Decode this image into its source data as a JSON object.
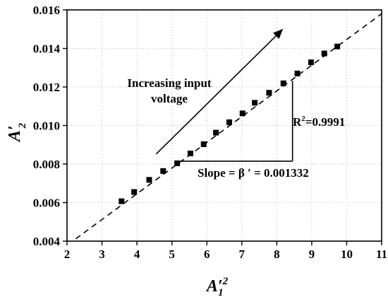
{
  "chart_data": {
    "type": "scatter",
    "title": "",
    "xlabel": {
      "main": "A",
      "prime": "′",
      "sub": "1",
      "sup": "2"
    },
    "ylabel": {
      "main": "A",
      "prime": "′",
      "sub": "2"
    },
    "xlim": [
      2,
      11
    ],
    "ylim": [
      0.004,
      0.016
    ],
    "x_ticks": [
      2,
      3,
      4,
      5,
      6,
      7,
      8,
      9,
      10,
      11
    ],
    "x_tick_labels": [
      "2",
      "3",
      "4",
      "5",
      "6",
      "7",
      "8",
      "9",
      "10",
      "11"
    ],
    "y_ticks": [
      0.004,
      0.006,
      0.008,
      0.01,
      0.012,
      0.014,
      0.016
    ],
    "y_tick_labels": [
      "0.004",
      "0.006",
      "0.008",
      "0.010",
      "0.012",
      "0.014",
      "0.016"
    ],
    "grid": true,
    "series": [
      {
        "marker": "square",
        "color": "#000000",
        "points": [
          {
            "x": 3.56,
            "y": 0.00607
          },
          {
            "x": 3.92,
            "y": 0.00655
          },
          {
            "x": 4.35,
            "y": 0.00718
          },
          {
            "x": 4.75,
            "y": 0.00764
          },
          {
            "x": 5.15,
            "y": 0.00804
          },
          {
            "x": 5.53,
            "y": 0.00855
          },
          {
            "x": 5.91,
            "y": 0.00903
          },
          {
            "x": 6.26,
            "y": 0.00963
          },
          {
            "x": 6.64,
            "y": 0.01017
          },
          {
            "x": 7.02,
            "y": 0.01063
          },
          {
            "x": 7.37,
            "y": 0.01118
          },
          {
            "x": 7.78,
            "y": 0.0117
          },
          {
            "x": 8.19,
            "y": 0.01219
          },
          {
            "x": 8.59,
            "y": 0.0127
          },
          {
            "x": 8.98,
            "y": 0.01328
          },
          {
            "x": 9.36,
            "y": 0.01374
          },
          {
            "x": 9.73,
            "y": 0.0141
          }
        ]
      }
    ],
    "fit_line": {
      "style": "dashed",
      "slope": 0.001332,
      "points": [
        {
          "x": 2.25,
          "y": 0.00412
        },
        {
          "x": 11.0,
          "y": 0.0158
        }
      ]
    },
    "slope_triangle": {
      "x_start": 5.2,
      "x_end": 8.45,
      "y_base": 0.00815,
      "y_top": 0.01232
    },
    "arrow": {
      "label": [
        "Increasing input",
        "voltage"
      ],
      "from": {
        "x": 4.55,
        "y": 0.00852
      },
      "to": {
        "x": 8.15,
        "y": 0.01496
      }
    },
    "annotations": {
      "r2_prefix": "R",
      "r2_sup": "2",
      "r2_suffix": "=0.9991",
      "slope_text": "Slope = β ′ = 0.001332"
    }
  }
}
